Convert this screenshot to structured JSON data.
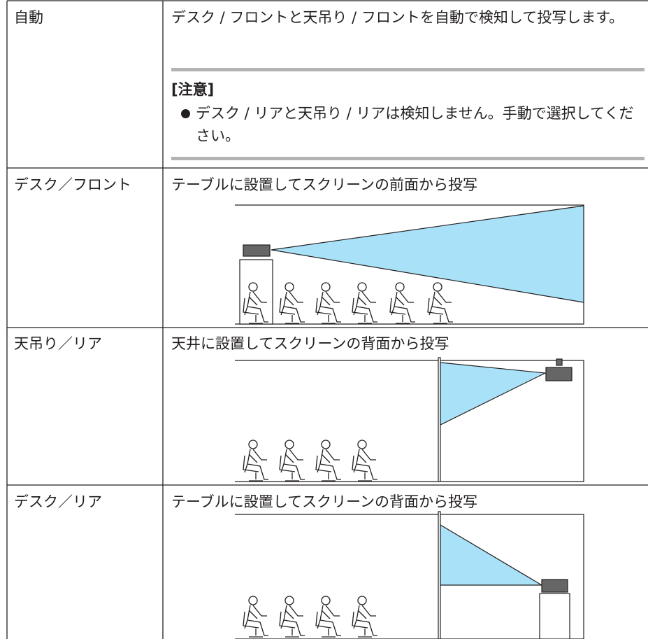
{
  "table": {
    "rows": [
      {
        "label": "自動",
        "description": "デスク / フロントと天吊り / フロントを自動で検知して投写します。",
        "note": {
          "title": "[注意]",
          "items": [
            "デスク / リアと天吊り / リアは検知しません。手動で選択してください。"
          ]
        }
      },
      {
        "label": "デスク／フロント",
        "description": "テーブルに設置してスクリーンの前面から投写"
      },
      {
        "label": "天吊り／リア",
        "description": "天井に設置してスクリーンの背面から投写"
      },
      {
        "label": "デスク／リア",
        "description": "テーブルに設置してスクリーンの背面から投写"
      }
    ]
  }
}
